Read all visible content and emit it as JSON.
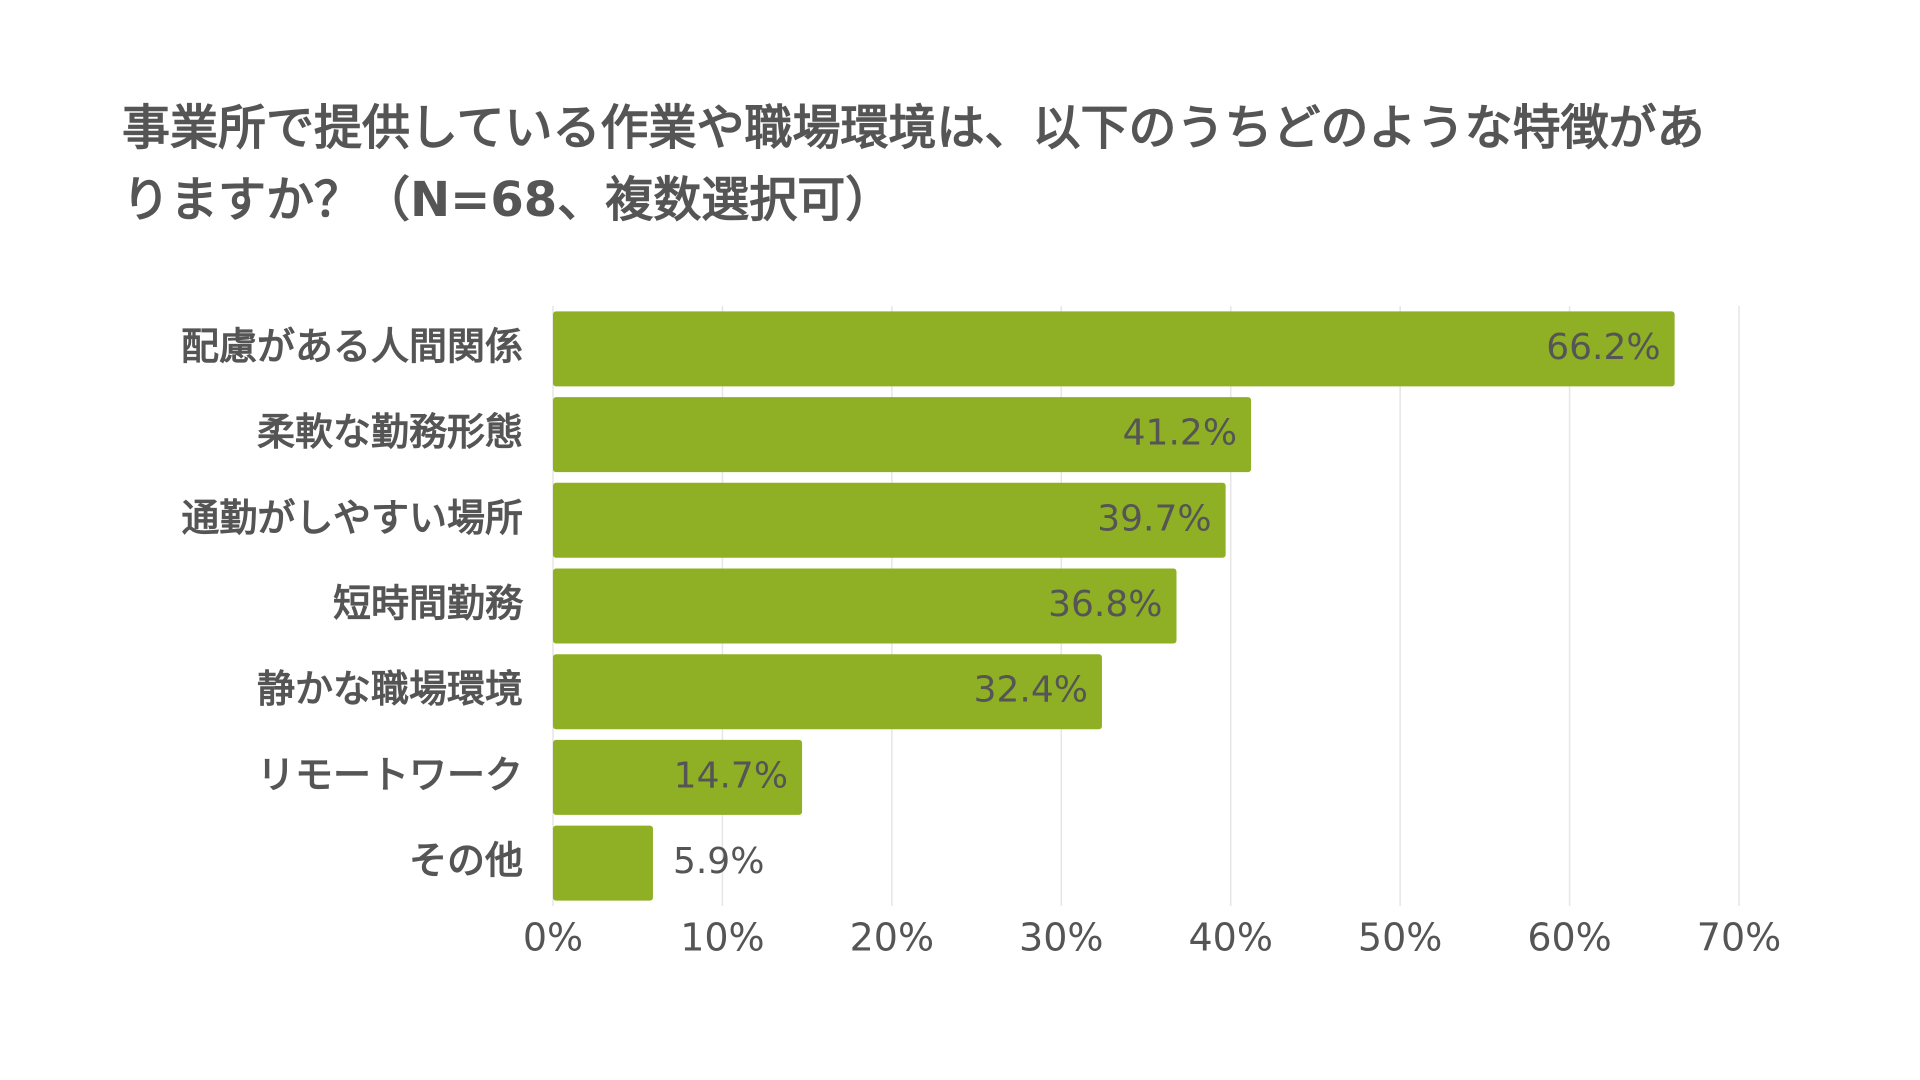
{
  "chart_data": {
    "type": "hbar",
    "title": "事業所で提供している作業や職場環境は、以下のうちどのような特徴がありますか？（N=68、複数選択可）",
    "categories": [
      "配慮がある人間関係",
      "柔軟な勤務形態",
      "通勤がしやすい場所",
      "短時間勤務",
      "静かな職場環境",
      "リモートワーク",
      "その他"
    ],
    "values": [
      66.2,
      41.2,
      39.7,
      36.8,
      32.4,
      14.7,
      5.9
    ],
    "value_labels": [
      "66.2%",
      "41.2%",
      "39.7%",
      "36.8%",
      "32.4%",
      "14.7%",
      "5.9%"
    ],
    "color": "#8fb025",
    "xlim": [
      0,
      70
    ],
    "xticks": [
      {
        "value": 0,
        "label": "0%"
      },
      {
        "value": 10,
        "label": "10%"
      },
      {
        "value": 20,
        "label": "20%"
      },
      {
        "value": 30,
        "label": "30%"
      },
      {
        "value": 40,
        "label": "40%"
      },
      {
        "value": 50,
        "label": "50%"
      },
      {
        "value": 60,
        "label": "60%"
      },
      {
        "value": 70,
        "label": "70%"
      }
    ],
    "grid": true
  }
}
